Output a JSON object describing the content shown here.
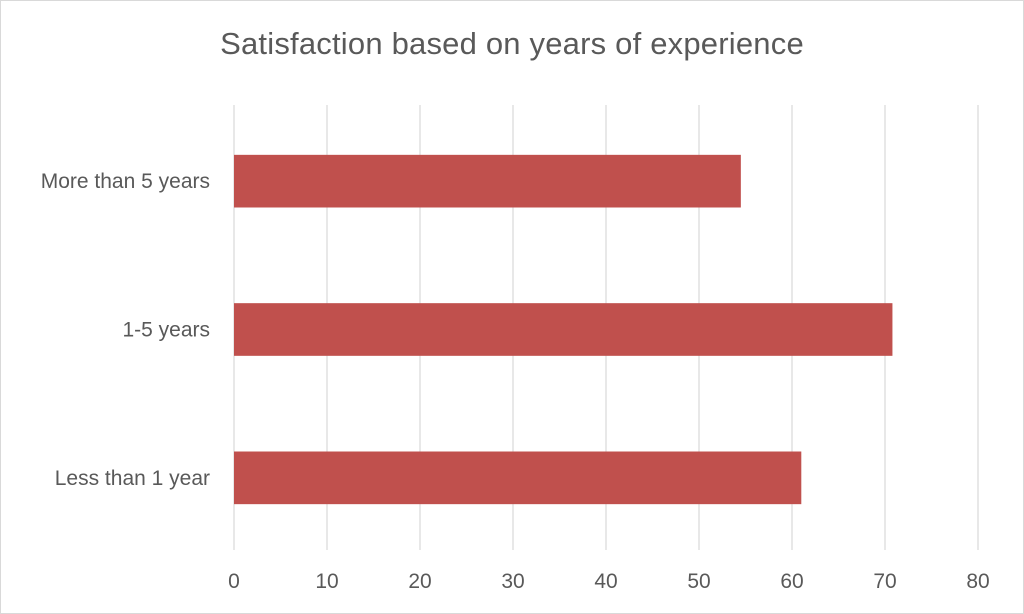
{
  "chart_data": {
    "type": "bar",
    "orientation": "horizontal",
    "title": "Satisfaction based on years of experience",
    "xlabel": "",
    "ylabel": "",
    "categories": [
      "More than 5 years",
      "1-5 years",
      "Less than 1 year"
    ],
    "values": [
      54.5,
      70.8,
      61.0
    ],
    "xlim": [
      0,
      80
    ],
    "ticks": [
      0,
      10,
      20,
      30,
      40,
      50,
      60,
      70,
      80
    ],
    "grid": true,
    "legend": "none",
    "colors": {
      "bar": "#c0504d",
      "grid": "#d9d9d9",
      "text": "#595959"
    }
  }
}
